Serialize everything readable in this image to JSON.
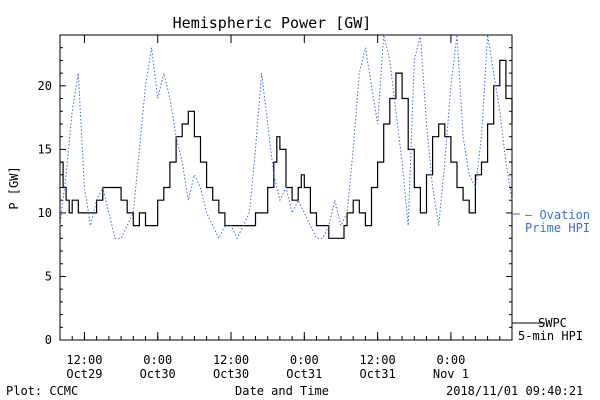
{
  "chart_data": {
    "type": "line",
    "title": "Hemispheric Power [GW]",
    "ylabel": "P [GW]",
    "xlabel": "Date and Time",
    "ylim": [
      0,
      24
    ],
    "yticks": [
      0,
      5,
      10,
      15,
      20
    ],
    "xlim": [
      0,
      68
    ],
    "xticks": [
      {
        "x": 4,
        "line1": "12:00",
        "line2": "Oct29"
      },
      {
        "x": 16,
        "line1": "0:00",
        "line2": "Oct30"
      },
      {
        "x": 28,
        "line1": "12:00",
        "line2": "Oct30"
      },
      {
        "x": 40,
        "line1": "0:00",
        "line2": "Oct31"
      },
      {
        "x": 52,
        "line1": "12:00",
        "line2": "Oct31"
      },
      {
        "x": 64,
        "line1": "0:00",
        "line2": "Nov 1"
      }
    ],
    "legend": {
      "ovation_line1": "— Ovation",
      "ovation_line2": "Prime HPI",
      "swpc_line1": "SWPC",
      "swpc_line2": "5-min HPI"
    },
    "footer": {
      "left": "Plot: CCMC",
      "right": "2018/11/01 09:40:21"
    },
    "colors": {
      "swpc": "#000000",
      "ovation": "#3a6fd8"
    },
    "series": [
      {
        "name": "SWPC 5-min HPI",
        "style": "solid",
        "points": [
          [
            0,
            14
          ],
          [
            0.5,
            12
          ],
          [
            1,
            11
          ],
          [
            1.5,
            10
          ],
          [
            2,
            11
          ],
          [
            3,
            10
          ],
          [
            4,
            10
          ],
          [
            5,
            10
          ],
          [
            6,
            11
          ],
          [
            7,
            12
          ],
          [
            9,
            12
          ],
          [
            10,
            11
          ],
          [
            11,
            10
          ],
          [
            12,
            9
          ],
          [
            13,
            10
          ],
          [
            14,
            9
          ],
          [
            15,
            9
          ],
          [
            16,
            11
          ],
          [
            17,
            12
          ],
          [
            18,
            14
          ],
          [
            19,
            16
          ],
          [
            20,
            17
          ],
          [
            21,
            18
          ],
          [
            22,
            16
          ],
          [
            23,
            14
          ],
          [
            24,
            12
          ],
          [
            25,
            11
          ],
          [
            26,
            10
          ],
          [
            27,
            9
          ],
          [
            28,
            9
          ],
          [
            29,
            9
          ],
          [
            30,
            9
          ],
          [
            31,
            9
          ],
          [
            32,
            10
          ],
          [
            33,
            10
          ],
          [
            34,
            12
          ],
          [
            35,
            14
          ],
          [
            35.5,
            16
          ],
          [
            36,
            15
          ],
          [
            37,
            12
          ],
          [
            38,
            11
          ],
          [
            39,
            12
          ],
          [
            39.5,
            13
          ],
          [
            40,
            12
          ],
          [
            41,
            10
          ],
          [
            42,
            9
          ],
          [
            43,
            9
          ],
          [
            44,
            8
          ],
          [
            45,
            8
          ],
          [
            46,
            8
          ],
          [
            46.5,
            9
          ],
          [
            47,
            10
          ],
          [
            48,
            11
          ],
          [
            49,
            10
          ],
          [
            50,
            9
          ],
          [
            51,
            12
          ],
          [
            52,
            14
          ],
          [
            53,
            17
          ],
          [
            54,
            19
          ],
          [
            55,
            21
          ],
          [
            56,
            19
          ],
          [
            57,
            15
          ],
          [
            58,
            12
          ],
          [
            59,
            10
          ],
          [
            60,
            13
          ],
          [
            61,
            16
          ],
          [
            62,
            17
          ],
          [
            63,
            16
          ],
          [
            64,
            14
          ],
          [
            65,
            12
          ],
          [
            66,
            11
          ],
          [
            67,
            10
          ],
          [
            68,
            13
          ],
          [
            69,
            14
          ],
          [
            70,
            17
          ],
          [
            71,
            20
          ],
          [
            72,
            22
          ],
          [
            73,
            19
          ],
          [
            74,
            17
          ]
        ]
      },
      {
        "name": "Ovation Prime HPI",
        "style": "dotted",
        "points": [
          [
            0,
            9
          ],
          [
            1,
            13
          ],
          [
            2,
            18
          ],
          [
            3,
            21
          ],
          [
            4,
            12
          ],
          [
            5,
            9
          ],
          [
            6,
            11
          ],
          [
            7,
            12
          ],
          [
            8,
            10
          ],
          [
            9,
            8
          ],
          [
            10,
            8
          ],
          [
            11,
            9
          ],
          [
            12,
            10
          ],
          [
            13,
            15
          ],
          [
            14,
            20
          ],
          [
            15,
            23
          ],
          [
            16,
            19
          ],
          [
            17,
            21
          ],
          [
            18,
            19
          ],
          [
            19,
            16
          ],
          [
            20,
            14
          ],
          [
            21,
            11
          ],
          [
            22,
            13
          ],
          [
            23,
            12
          ],
          [
            24,
            10
          ],
          [
            25,
            9
          ],
          [
            26,
            8
          ],
          [
            27,
            9
          ],
          [
            28,
            9
          ],
          [
            29,
            8
          ],
          [
            30,
            9
          ],
          [
            31,
            10
          ],
          [
            32,
            15
          ],
          [
            33,
            21
          ],
          [
            34,
            17
          ],
          [
            35,
            13
          ],
          [
            36,
            11
          ],
          [
            37,
            12
          ],
          [
            38,
            10
          ],
          [
            39,
            11
          ],
          [
            40,
            10
          ],
          [
            41,
            9
          ],
          [
            42,
            8
          ],
          [
            43,
            8
          ],
          [
            44,
            9
          ],
          [
            45,
            11
          ],
          [
            46,
            9
          ],
          [
            47,
            10
          ],
          [
            48,
            15
          ],
          [
            49,
            21
          ],
          [
            50,
            23
          ],
          [
            51,
            20
          ],
          [
            52,
            17
          ],
          [
            53,
            24
          ],
          [
            54,
            22
          ],
          [
            55,
            18
          ],
          [
            56,
            14
          ],
          [
            57,
            9
          ],
          [
            58,
            22
          ],
          [
            59,
            24
          ],
          [
            60,
            17
          ],
          [
            61,
            12
          ],
          [
            62,
            9
          ],
          [
            63,
            14
          ],
          [
            64,
            20
          ],
          [
            65,
            24
          ],
          [
            66,
            16
          ],
          [
            67,
            13
          ],
          [
            68,
            12
          ],
          [
            69,
            16
          ],
          [
            70,
            24
          ],
          [
            71,
            21
          ],
          [
            72,
            18
          ],
          [
            73,
            14
          ],
          [
            74,
            11
          ]
        ]
      }
    ]
  }
}
